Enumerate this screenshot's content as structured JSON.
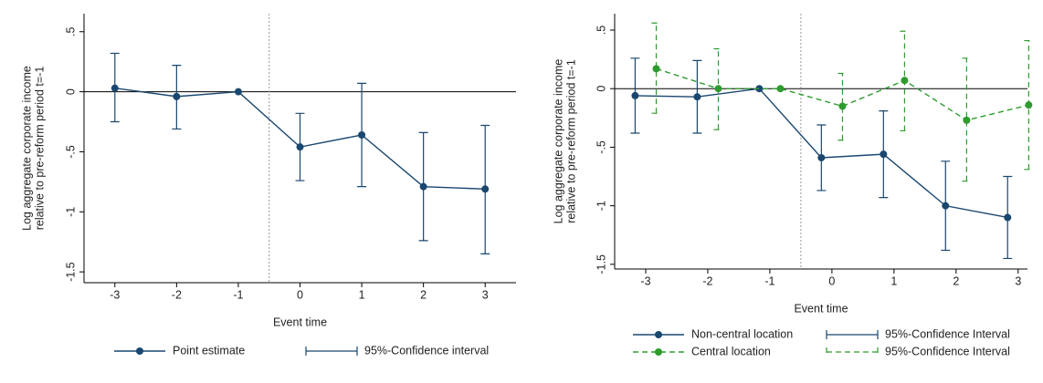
{
  "chart_data": [
    {
      "type": "errorbar-line",
      "xlabel": "Event time",
      "ylabel": [
        "Log aggregate corporate income",
        "relative to pre-reform period t=-1"
      ],
      "xlim": [
        -3.5,
        3.5
      ],
      "ylim": [
        -1.59,
        0.65
      ],
      "xticks": [
        -3,
        -2,
        -1,
        0,
        1,
        2,
        3
      ],
      "yticks": [
        {
          "value": 0.5,
          "label": ".5"
        },
        0,
        {
          "value": -0.5,
          "label": "-.5"
        },
        -1,
        -1.5
      ],
      "vline": -0.5,
      "hline": 0,
      "series": [
        {
          "name": "Point estimate",
          "ci_name": "95%-Confidence interval",
          "color": "#1a476f",
          "dashed": false,
          "x": [
            -3,
            -2,
            -1,
            0,
            1,
            2,
            3
          ],
          "values": [
            0.03,
            -0.04,
            0,
            -0.46,
            -0.36,
            -0.79,
            -0.81
          ],
          "ci_low": [
            -0.25,
            -0.31,
            null,
            -0.74,
            -0.79,
            -1.24,
            -1.35
          ],
          "ci_high": [
            0.32,
            0.22,
            null,
            -0.18,
            0.07,
            -0.34,
            -0.28
          ]
        }
      ]
    },
    {
      "type": "errorbar-line",
      "xlabel": "Event time",
      "ylabel": [
        "Log aggregate corporate income",
        "relative to pre-reform period t=-1"
      ],
      "xlim": [
        -3.5,
        3.15
      ],
      "ylim": [
        -1.54,
        0.64
      ],
      "xticks": [
        -3,
        -2,
        -1,
        0,
        1,
        2,
        3
      ],
      "yticks": [
        {
          "value": 0.5,
          "label": ".5"
        },
        0,
        {
          "value": -0.5,
          "label": "-.5"
        },
        -1,
        -1.5
      ],
      "vline": -0.5,
      "hline": 0,
      "series": [
        {
          "name": "Non-central location",
          "ci_name": "95%-Confidence Interval",
          "color": "#1a476f",
          "dashed": false,
          "x": [
            -3.17,
            -2.17,
            -1.17,
            -0.17,
            0.83,
            1.83,
            2.83
          ],
          "values": [
            -0.06,
            -0.07,
            0,
            -0.59,
            -0.56,
            -1.0,
            -1.1
          ],
          "ci_low": [
            -0.38,
            -0.38,
            null,
            -0.87,
            -0.93,
            -1.38,
            -1.45
          ],
          "ci_high": [
            0.26,
            0.24,
            null,
            -0.31,
            -0.19,
            -0.62,
            -0.75
          ]
        },
        {
          "name": "Central location",
          "ci_name": "95%-Confidence Interval",
          "color": "#2e9b2e",
          "dashed": true,
          "x": [
            -2.83,
            -1.83,
            -0.83,
            0.17,
            1.17,
            2.17,
            3.17
          ],
          "values": [
            0.17,
            0,
            0,
            -0.15,
            0.07,
            -0.27,
            -0.14
          ],
          "ci_low": [
            -0.21,
            -0.35,
            null,
            -0.44,
            -0.36,
            -0.79,
            -0.69
          ],
          "ci_high": [
            0.56,
            0.34,
            null,
            0.13,
            0.49,
            0.26,
            0.41
          ]
        }
      ]
    }
  ]
}
